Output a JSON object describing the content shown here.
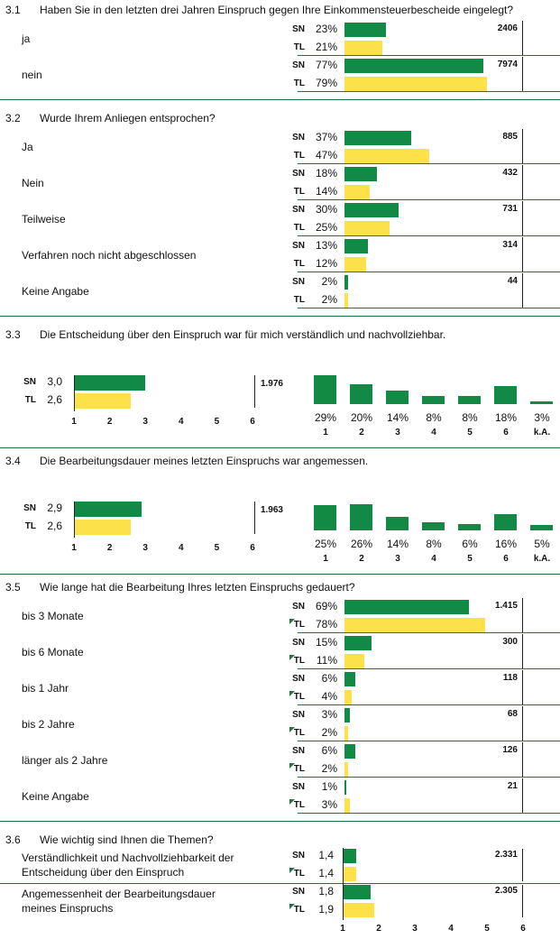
{
  "colors": {
    "sn": "#128a45",
    "tl": "#fde14a",
    "divider": "#1a7a3a"
  },
  "series_labels": {
    "sn": "SN",
    "tl": "TL"
  },
  "chart_data": [
    {
      "type": "bar",
      "id": "q31",
      "number": "3.1",
      "title": "Haben Sie in den letzten drei Jahren Einspruch gegen Ihre Einkommensteuerbescheide eingelegt?",
      "categories": [
        "ja",
        "nein"
      ],
      "series": [
        {
          "name": "SN",
          "values": [
            23,
            77
          ],
          "labels": [
            "23%",
            "77%"
          ]
        },
        {
          "name": "TL",
          "values": [
            21,
            79
          ],
          "labels": [
            "21%",
            "79%"
          ]
        }
      ],
      "totals": [
        "2406",
        "7974"
      ],
      "ylim": [
        0,
        100
      ]
    },
    {
      "type": "bar",
      "id": "q32",
      "number": "3.2",
      "title": "Wurde Ihrem Anliegen entsprochen?",
      "categories": [
        "Ja",
        "Nein",
        "Teilweise",
        "Verfahren noch nicht abgeschlossen",
        "Keine Angabe"
      ],
      "series": [
        {
          "name": "SN",
          "values": [
            37,
            18,
            30,
            13,
            2
          ],
          "labels": [
            "37%",
            "18%",
            "30%",
            "13%",
            "2%"
          ]
        },
        {
          "name": "TL",
          "values": [
            47,
            14,
            25,
            12,
            2
          ],
          "labels": [
            "47%",
            "14%",
            "25%",
            "12%",
            "2%"
          ]
        }
      ],
      "totals": [
        "885",
        "432",
        "731",
        "314",
        "44"
      ],
      "ylim": [
        0,
        100
      ]
    },
    {
      "type": "bar",
      "id": "q33",
      "number": "3.3",
      "title": "Die Entscheidung über den Einspruch war für mich verständlich und nachvollziehbar.",
      "mean": {
        "series": [
          {
            "name": "SN",
            "value": 3.0,
            "label": "3,0"
          },
          {
            "name": "TL",
            "value": 2.6,
            "label": "2,6"
          }
        ],
        "ticks": [
          "1",
          "2",
          "3",
          "4",
          "5",
          "6"
        ],
        "xlim": [
          1,
          6
        ],
        "total": "1.976"
      },
      "distribution": {
        "categories": [
          "1",
          "2",
          "3",
          "4",
          "5",
          "6",
          "k.A."
        ],
        "values": [
          29,
          20,
          14,
          8,
          8,
          18,
          3
        ],
        "labels": [
          "29%",
          "20%",
          "14%",
          "8%",
          "8%",
          "18%",
          "3%"
        ]
      }
    },
    {
      "type": "bar",
      "id": "q34",
      "number": "3.4",
      "title": "Die Bearbeitungsdauer meines letzten Einspruchs war angemessen.",
      "mean": {
        "series": [
          {
            "name": "SN",
            "value": 2.9,
            "label": "2,9"
          },
          {
            "name": "TL",
            "value": 2.6,
            "label": "2,6"
          }
        ],
        "ticks": [
          "1",
          "2",
          "3",
          "4",
          "5",
          "6"
        ],
        "xlim": [
          1,
          6
        ],
        "total": "1.963"
      },
      "distribution": {
        "categories": [
          "1",
          "2",
          "3",
          "4",
          "5",
          "6",
          "k.A."
        ],
        "values": [
          25,
          26,
          14,
          8,
          6,
          16,
          5
        ],
        "labels": [
          "25%",
          "26%",
          "14%",
          "8%",
          "6%",
          "16%",
          "5%"
        ]
      }
    },
    {
      "type": "bar",
      "id": "q35",
      "number": "3.5",
      "title": "Wie lange hat die Bearbeitung Ihres letzten Einspruchs gedauert?",
      "categories": [
        "bis 3 Monate",
        "bis 6 Monate",
        "bis 1 Jahr",
        "bis 2 Jahre",
        "länger als 2 Jahre",
        "Keine Angabe"
      ],
      "series": [
        {
          "name": "SN",
          "values": [
            69,
            15,
            6,
            3,
            6,
            1
          ],
          "labels": [
            "69%",
            "15%",
            "6%",
            "3%",
            "6%",
            "1%"
          ]
        },
        {
          "name": "TL",
          "values": [
            78,
            11,
            4,
            2,
            2,
            3
          ],
          "labels": [
            "78%",
            "11%",
            "4%",
            "2%",
            "2%",
            "3%"
          ]
        }
      ],
      "totals": [
        "1.415",
        "300",
        "118",
        "68",
        "126",
        "21"
      ],
      "ylim": [
        0,
        100
      ]
    },
    {
      "type": "bar",
      "id": "q36",
      "number": "3.6",
      "title": "Wie wichtig sind Ihnen die Themen?",
      "categories": [
        [
          "Verständlichkeit und Nachvollziehbarkeit der",
          "Entscheidung über den Einspruch"
        ],
        [
          "Angemessenheit der Bearbeitungsdauer",
          "meines Einspruchs"
        ]
      ],
      "series": [
        {
          "name": "SN",
          "values": [
            1.4,
            1.8
          ],
          "labels": [
            "1,4",
            "1,8"
          ]
        },
        {
          "name": "TL",
          "values": [
            1.4,
            1.9
          ],
          "labels": [
            "1,4",
            "1,9"
          ]
        }
      ],
      "totals": [
        "2.331",
        "2.305"
      ],
      "ticks": [
        "1",
        "2",
        "3",
        "4",
        "5",
        "6"
      ],
      "xlim": [
        1,
        6
      ]
    }
  ]
}
